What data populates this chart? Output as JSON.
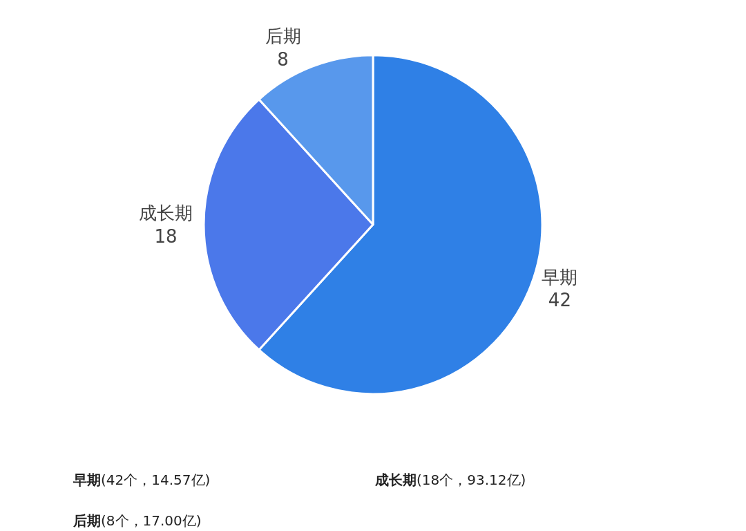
{
  "chart_data": {
    "type": "pie",
    "categories": [
      "早期",
      "成长期",
      "后期"
    ],
    "values": [
      42,
      18,
      8
    ],
    "colors": [
      "#2f80e6",
      "#4b78ea",
      "#5898ec"
    ],
    "data_labels": true,
    "legend": false,
    "annotations": [
      "早期(42个，14.57亿)",
      "成长期(18个，93.12亿)",
      "后期(8个，17.00亿)"
    ]
  }
}
